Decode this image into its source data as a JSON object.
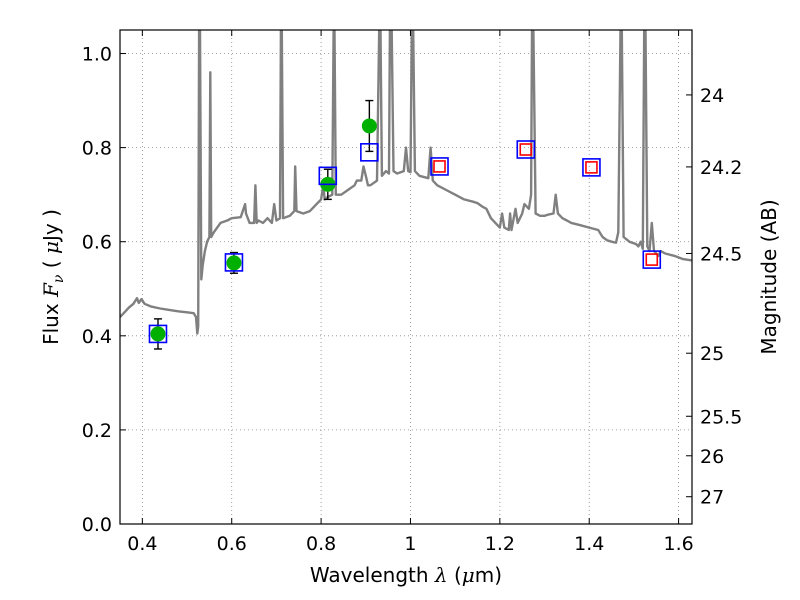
{
  "chart_data": {
    "type": "scatter",
    "xlabel": "Wavelength",
    "xlabel_symbol": "λ",
    "xlabel_unit_open": "(",
    "xlabel_unit_mu": "μ",
    "xlabel_unit_rest": "m)",
    "ylabel": "Flux",
    "ylabel_symbol": "F",
    "ylabel_symbol_sub": "ν",
    "ylabel_unit_open": "(",
    "ylabel_unit_mu": "μ",
    "ylabel_unit_rest": "Jy )",
    "y2label": "Magnitude (AB)",
    "xlim": [
      0.35,
      1.63
    ],
    "ylim": [
      0.0,
      1.05
    ],
    "grid": true,
    "x_ticks": [
      0.4,
      0.6,
      0.8,
      1.0,
      1.2,
      1.4,
      1.6
    ],
    "x_tick_labels": [
      "0.4",
      "0.6",
      "0.8",
      "1",
      "1.2",
      "1.4",
      "1.6"
    ],
    "y_ticks": [
      0.0,
      0.2,
      0.4,
      0.6,
      0.8,
      1.0
    ],
    "y_tick_labels": [
      "0.0",
      "0.2",
      "0.4",
      "0.6",
      "0.8",
      "1.0"
    ],
    "y2_ticks": [
      {
        "label": "24",
        "flux": 0.912
      },
      {
        "label": "24.2",
        "flux": 0.759
      },
      {
        "label": "24.5",
        "flux": 0.575
      },
      {
        "label": "25",
        "flux": 0.363
      },
      {
        "label": "25.5",
        "flux": 0.229
      },
      {
        "label": "26",
        "flux": 0.145
      },
      {
        "label": "27",
        "flux": 0.058
      }
    ],
    "colors": {
      "model": "#808080",
      "observed": "#00b000",
      "model_box": "#0000ff",
      "predicted_box": "#ff0000",
      "errorbar": "#000000",
      "grid": "#888888"
    },
    "series": [
      {
        "kind": "line",
        "points": [
          [
            0.35,
            0.44
          ],
          [
            0.36,
            0.45
          ],
          [
            0.37,
            0.46
          ],
          [
            0.38,
            0.468
          ],
          [
            0.388,
            0.48
          ],
          [
            0.392,
            0.47
          ],
          [
            0.398,
            0.478
          ],
          [
            0.405,
            0.468
          ],
          [
            0.42,
            0.462
          ],
          [
            0.44,
            0.458
          ],
          [
            0.46,
            0.455
          ],
          [
            0.48,
            0.452
          ],
          [
            0.5,
            0.45
          ],
          [
            0.515,
            0.448
          ],
          [
            0.52,
            0.44
          ],
          [
            0.523,
            0.405
          ],
          [
            0.525,
            0.42
          ],
          [
            0.527,
            1.05
          ],
          [
            0.529,
            1.05
          ],
          [
            0.532,
            0.52
          ],
          [
            0.535,
            0.55
          ],
          [
            0.54,
            0.58
          ],
          [
            0.545,
            0.6
          ],
          [
            0.55,
            0.61
          ],
          [
            0.552,
            0.96
          ],
          [
            0.554,
            0.61
          ],
          [
            0.56,
            0.62
          ],
          [
            0.575,
            0.64
          ],
          [
            0.59,
            0.645
          ],
          [
            0.6,
            0.65
          ],
          [
            0.62,
            0.652
          ],
          [
            0.63,
            0.68
          ],
          [
            0.632,
            0.66
          ],
          [
            0.64,
            0.64
          ],
          [
            0.65,
            0.64
          ],
          [
            0.653,
            0.72
          ],
          [
            0.656,
            0.64
          ],
          [
            0.66,
            0.645
          ],
          [
            0.67,
            0.64
          ],
          [
            0.68,
            0.65
          ],
          [
            0.69,
            0.64
          ],
          [
            0.695,
            0.68
          ],
          [
            0.7,
            0.645
          ],
          [
            0.708,
            0.65
          ],
          [
            0.71,
            1.05
          ],
          [
            0.712,
            1.05
          ],
          [
            0.715,
            0.65
          ],
          [
            0.73,
            0.655
          ],
          [
            0.74,
            0.665
          ],
          [
            0.742,
            0.76
          ],
          [
            0.745,
            0.665
          ],
          [
            0.76,
            0.66
          ],
          [
            0.775,
            0.665
          ],
          [
            0.79,
            0.68
          ],
          [
            0.8,
            0.69
          ],
          [
            0.805,
            0.72
          ],
          [
            0.808,
            0.69
          ],
          [
            0.815,
            0.695
          ],
          [
            0.825,
            0.7
          ],
          [
            0.828,
            1.05
          ],
          [
            0.83,
            1.05
          ],
          [
            0.833,
            0.7
          ],
          [
            0.845,
            0.7
          ],
          [
            0.86,
            0.71
          ],
          [
            0.875,
            0.72
          ],
          [
            0.88,
            0.73
          ],
          [
            0.89,
            0.73
          ],
          [
            0.895,
            0.76
          ],
          [
            0.9,
            0.74
          ],
          [
            0.905,
            0.72
          ],
          [
            0.91,
            0.72
          ],
          [
            0.925,
            0.73
          ],
          [
            0.93,
            1.05
          ],
          [
            0.933,
            1.05
          ],
          [
            0.936,
            0.74
          ],
          [
            0.945,
            0.75
          ],
          [
            0.952,
            0.745
          ],
          [
            0.954,
            1.05
          ],
          [
            0.958,
            1.05
          ],
          [
            0.962,
            0.75
          ],
          [
            0.97,
            0.745
          ],
          [
            0.985,
            0.75
          ],
          [
            0.99,
            0.8
          ],
          [
            0.995,
            0.75
          ],
          [
            1.0,
            0.748
          ],
          [
            1.003,
            1.05
          ],
          [
            1.006,
            1.05
          ],
          [
            1.01,
            0.75
          ],
          [
            1.02,
            0.74
          ],
          [
            1.04,
            0.735
          ],
          [
            1.045,
            0.8
          ],
          [
            1.05,
            0.73
          ],
          [
            1.06,
            0.72
          ],
          [
            1.08,
            0.71
          ],
          [
            1.1,
            0.7
          ],
          [
            1.12,
            0.69
          ],
          [
            1.14,
            0.685
          ],
          [
            1.15,
            0.682
          ],
          [
            1.16,
            0.675
          ],
          [
            1.17,
            0.67
          ],
          [
            1.18,
            0.65
          ],
          [
            1.19,
            0.64
          ],
          [
            1.2,
            0.63
          ],
          [
            1.205,
            0.66
          ],
          [
            1.21,
            0.63
          ],
          [
            1.22,
            0.625
          ],
          [
            1.223,
            0.66
          ],
          [
            1.226,
            0.625
          ],
          [
            1.235,
            0.67
          ],
          [
            1.24,
            0.64
          ],
          [
            1.25,
            0.66
          ],
          [
            1.255,
            0.68
          ],
          [
            1.265,
            0.67
          ],
          [
            1.27,
            0.7
          ],
          [
            1.272,
            1.05
          ],
          [
            1.275,
            1.05
          ],
          [
            1.28,
            0.66
          ],
          [
            1.29,
            0.655
          ],
          [
            1.3,
            0.655
          ],
          [
            1.31,
            0.658
          ],
          [
            1.32,
            0.66
          ],
          [
            1.325,
            0.7
          ],
          [
            1.33,
            0.66
          ],
          [
            1.34,
            0.65
          ],
          [
            1.35,
            0.645
          ],
          [
            1.36,
            0.64
          ],
          [
            1.38,
            0.635
          ],
          [
            1.4,
            0.63
          ],
          [
            1.42,
            0.625
          ],
          [
            1.43,
            0.61
          ],
          [
            1.44,
            0.603
          ],
          [
            1.45,
            0.6
          ],
          [
            1.46,
            0.598
          ],
          [
            1.465,
            0.62
          ],
          [
            1.47,
            1.05
          ],
          [
            1.473,
            1.05
          ],
          [
            1.477,
            0.61
          ],
          [
            1.49,
            0.6
          ],
          [
            1.505,
            0.595
          ],
          [
            1.51,
            0.59
          ],
          [
            1.515,
            0.6
          ],
          [
            1.52,
            0.585
          ],
          [
            1.523,
            1.05
          ],
          [
            1.526,
            1.05
          ],
          [
            1.53,
            0.59
          ],
          [
            1.535,
            0.58
          ],
          [
            1.54,
            0.64
          ],
          [
            1.545,
            0.58
          ],
          [
            1.555,
            0.57
          ],
          [
            1.56,
            0.58
          ],
          [
            1.57,
            0.575
          ],
          [
            1.59,
            0.57
          ],
          [
            1.61,
            0.563
          ],
          [
            1.63,
            0.56
          ]
        ]
      },
      {
        "kind": "points",
        "x": [
          0.435,
          0.605,
          0.815,
          0.908
        ],
        "y": [
          0.404,
          0.555,
          0.722,
          0.846
        ],
        "yerr": [
          0.032,
          0.022,
          0.032,
          0.054
        ]
      },
      {
        "kind": "boxes",
        "x": [
          0.435,
          0.605,
          0.815,
          0.908,
          1.065,
          1.258,
          1.405,
          1.54
        ],
        "y": [
          0.404,
          0.556,
          0.74,
          0.79,
          0.76,
          0.796,
          0.758,
          0.562
        ]
      },
      {
        "kind": "boxes",
        "x": [
          1.065,
          1.258,
          1.405,
          1.54
        ],
        "y": [
          0.76,
          0.796,
          0.758,
          0.562
        ]
      }
    ]
  }
}
